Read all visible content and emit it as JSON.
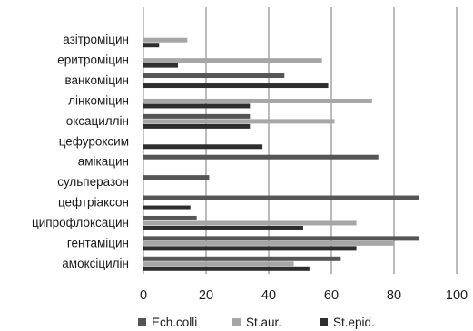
{
  "chart_data": {
    "type": "bar",
    "orientation": "horizontal",
    "categories": [
      "азітроміцин",
      "еритроміцин",
      "ванкоміцин",
      "лінкоміцин",
      "оксациллін",
      "цефуроксим",
      "амікацин",
      "сульперазон",
      "цефтріаксон",
      "ципрофлоксацин",
      "гентаміцин",
      "амоксіцилін"
    ],
    "series": [
      {
        "name": "Ech.colli",
        "color": "#555555",
        "values": [
          null,
          null,
          45,
          null,
          34,
          null,
          75,
          21,
          88,
          17,
          88,
          63
        ]
      },
      {
        "name": "St.aur.",
        "color": "#a6a6a6",
        "values": [
          14,
          57,
          null,
          73,
          61,
          null,
          null,
          null,
          null,
          68,
          80,
          48
        ]
      },
      {
        "name": "St.epid.",
        "color": "#2e2e2e",
        "values": [
          5,
          11,
          59,
          34,
          34,
          38,
          null,
          null,
          15,
          51,
          68,
          53
        ]
      }
    ],
    "xlim": [
      0,
      100
    ],
    "xticks": [
      "0",
      "20",
      "40",
      "60",
      "80",
      "100"
    ],
    "grid": "vertical",
    "legend_position": "bottom"
  }
}
